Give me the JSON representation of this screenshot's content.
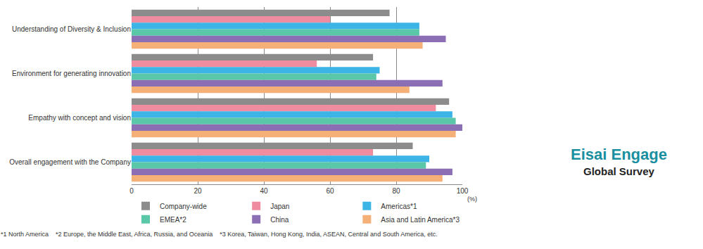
{
  "chart_data": {
    "type": "bar",
    "orientation": "horizontal",
    "categories": [
      "Understanding of Diversity & Inclusion",
      "Environment for generating innovation",
      "Empathy with concept and vision",
      "Overall engagement with the Company"
    ],
    "series": [
      {
        "name": "Company-wide",
        "color": "#8c8c8c",
        "values": [
          78,
          73,
          96,
          85
        ]
      },
      {
        "name": "Japan",
        "color": "#f08ca0",
        "values": [
          60,
          56,
          92,
          73
        ]
      },
      {
        "name": "Americas*1",
        "color": "#3cb4e6",
        "values": [
          87,
          75,
          97,
          90
        ]
      },
      {
        "name": "EMEA*2",
        "color": "#5ac8a8",
        "values": [
          87,
          74,
          98,
          89
        ]
      },
      {
        "name": "China",
        "color": "#8c6eb4",
        "values": [
          95,
          94,
          100,
          97
        ]
      },
      {
        "name": "Asia and Latin America*3",
        "color": "#f5b078",
        "values": [
          88,
          84,
          98,
          94
        ]
      }
    ],
    "xlim": [
      0,
      100
    ],
    "xticks": [
      0,
      20,
      40,
      60,
      80,
      100
    ],
    "xlabel": "(%)",
    "grid": true,
    "legend": "bottom",
    "annotations": [
      "*1 North America    *2 Europe, the Middle East, Africa, Russia, and Oceania    *3 Korea, Taiwan, Hong Kong, India, ASEAN, Central and South America, etc.",
      "Eisai Engage",
      "Global Survey"
    ]
  }
}
